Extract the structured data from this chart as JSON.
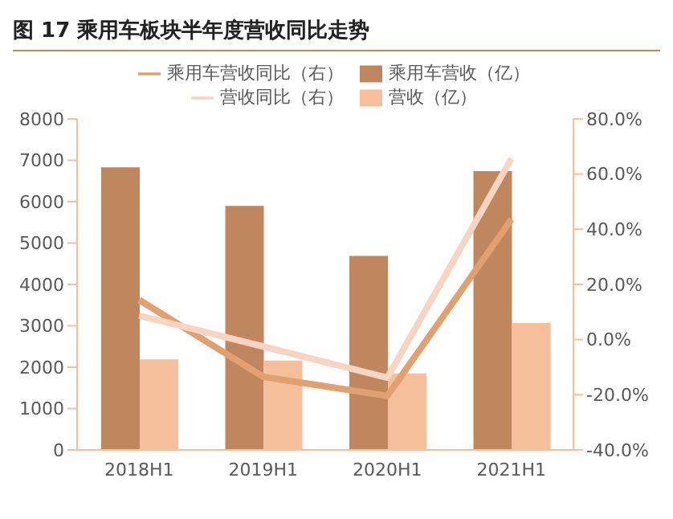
{
  "chart_data": {
    "type": "bar",
    "title": "图 17 乘用车板块半年度营收同比走势",
    "categories": [
      "2018H1",
      "2019H1",
      "2020H1",
      "2021H1"
    ],
    "series": [
      {
        "name": "乘用车营收（亿）",
        "color": "#c0875f",
        "values": [
          6830,
          5900,
          4690,
          6740
        ]
      },
      {
        "name": "营收（亿）",
        "color": "#f5bf9b",
        "values": [
          2190,
          2160,
          1850,
          3070
        ]
      },
      {
        "name": "乘用车营收同比（右）",
        "type": "line",
        "axis": "y2",
        "color": "#e0a06f",
        "values": [
          14.4,
          -13.5,
          -20.4,
          43.6
        ]
      },
      {
        "name": "营收同比（右）",
        "type": "line",
        "axis": "y2",
        "color": "#f8d5c2",
        "values": [
          8.7,
          -2.5,
          -13.8,
          65.6
        ]
      }
    ],
    "ylim": [
      0,
      8000
    ],
    "yticks": [
      0,
      1000,
      2000,
      3000,
      4000,
      5000,
      6000,
      7000,
      8000
    ],
    "y2lim": [
      -40,
      80
    ],
    "y2ticks": [
      {
        "value": -40,
        "label": "-40.0%"
      },
      {
        "value": -20,
        "label": "-20.0%"
      },
      {
        "value": 0,
        "label": "0.0%"
      },
      {
        "value": 20,
        "label": "20.0%"
      },
      {
        "value": 40,
        "label": "40.0%"
      },
      {
        "value": 60,
        "label": "60.0%"
      },
      {
        "value": 80,
        "label": "80.0%"
      }
    ],
    "grid": false,
    "legend": "top",
    "marker": "none"
  }
}
